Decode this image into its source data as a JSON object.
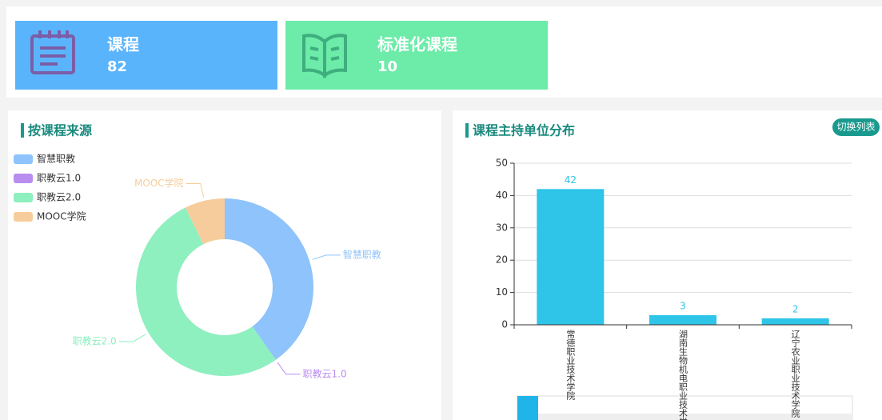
{
  "cards": [
    {
      "title": "课程",
      "value": 82
    },
    {
      "title": "标准化课程",
      "value": 10
    }
  ],
  "chart_data": [
    {
      "type": "pie",
      "title": "按课程来源",
      "categories": [
        "智慧职教",
        "职教云1.0",
        "职教云2.0",
        "MOOC学院"
      ],
      "values": [
        33,
        0,
        43,
        6
      ],
      "colors": [
        "#8ec3fb",
        "#b98df0",
        "#8eefbf",
        "#f7cc9c"
      ],
      "legend": "top-left"
    },
    {
      "type": "bar",
      "title": "课程主持单位分布",
      "categories": [
        "常德职业技术学院",
        "湖南生物机电职业技术学院",
        "辽宁农业职业技术学院"
      ],
      "values": [
        42,
        3,
        2
      ],
      "color": "#2ec5e8",
      "ylim": [
        0,
        50
      ],
      "yticks": [
        0,
        10,
        20,
        30,
        40,
        50
      ],
      "grid": true
    }
  ],
  "toggle_button": "切换列表"
}
